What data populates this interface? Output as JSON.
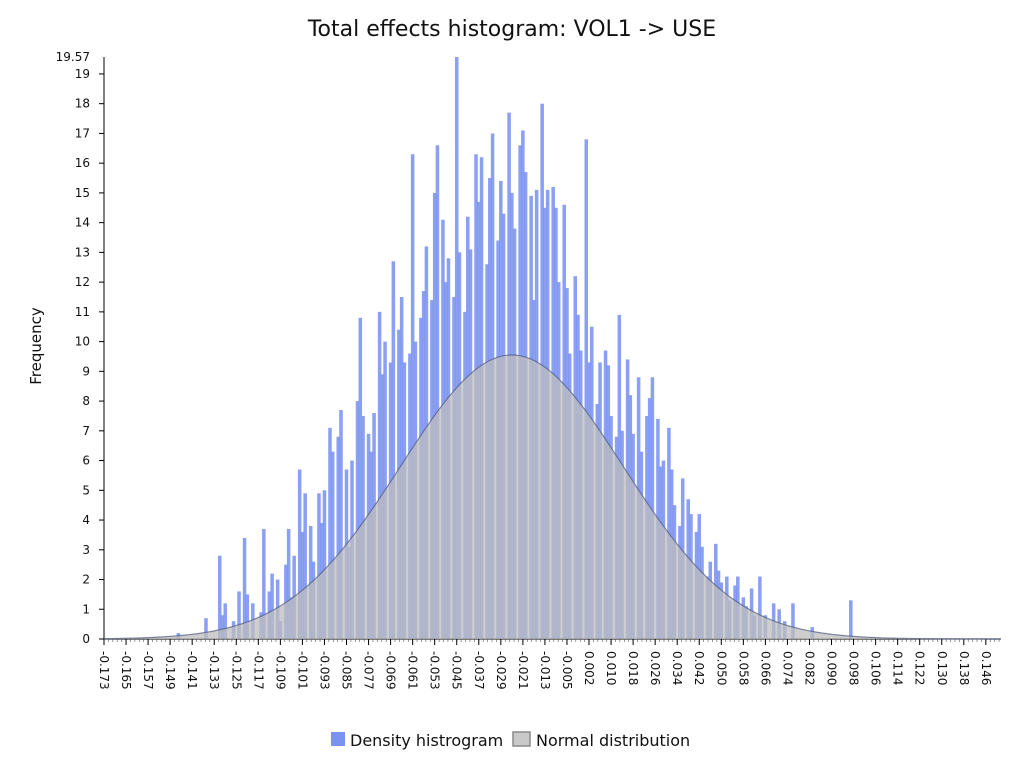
{
  "chart_data": {
    "type": "bar",
    "title": "Total effects histogram: VOL1 -> USE",
    "xlabel": "",
    "ylabel": "Frequency",
    "xlim": [
      -0.173,
      0.1525
    ],
    "ylim": [
      0,
      19.57
    ],
    "y_ticks": [
      0,
      1,
      2,
      3,
      4,
      5,
      6,
      7,
      8,
      9,
      10,
      11,
      12,
      13,
      14,
      15,
      16,
      17,
      18,
      19
    ],
    "y_max_label": "19.57",
    "x_tick_labels": [
      "-0.173",
      "-0.165",
      "-0.157",
      "-0.149",
      "-0.141",
      "-0.133",
      "-0.125",
      "-0.117",
      "-0.109",
      "-0.101",
      "-0.093",
      "-0.085",
      "-0.077",
      "-0.069",
      "-0.061",
      "-0.053",
      "-0.045",
      "-0.037",
      "-0.029",
      "-0.021",
      "-0.013",
      "-0.005",
      "0.002",
      "0.010",
      "0.018",
      "0.026",
      "0.034",
      "0.042",
      "0.050",
      "0.058",
      "0.066",
      "0.074",
      "0.082",
      "0.090",
      "0.098",
      "0.106",
      "0.114",
      "0.122",
      "0.130",
      "0.138",
      "0.146"
    ],
    "legend": {
      "position": "bottom-center"
    },
    "series": [
      {
        "name": "Density histrogram",
        "kind": "histogram",
        "color": "#7b93f0",
        "bins": [
          [
            -0.146,
            0.2
          ],
          [
            -0.136,
            0.7
          ],
          [
            -0.131,
            2.8
          ],
          [
            -0.13,
            0.8
          ],
          [
            -0.129,
            1.2
          ],
          [
            -0.126,
            0.6
          ],
          [
            -0.124,
            1.6
          ],
          [
            -0.122,
            3.4
          ],
          [
            -0.121,
            1.5
          ],
          [
            -0.119,
            1.2
          ],
          [
            -0.116,
            0.9
          ],
          [
            -0.115,
            3.7
          ],
          [
            -0.113,
            1.6
          ],
          [
            -0.112,
            2.2
          ],
          [
            -0.11,
            2.0
          ],
          [
            -0.109,
            0.6
          ],
          [
            -0.107,
            2.5
          ],
          [
            -0.106,
            3.7
          ],
          [
            -0.105,
            1.4
          ],
          [
            -0.104,
            2.8
          ],
          [
            -0.102,
            5.7
          ],
          [
            -0.101,
            3.6
          ],
          [
            -0.1,
            4.9
          ],
          [
            -0.098,
            3.8
          ],
          [
            -0.097,
            2.6
          ],
          [
            -0.095,
            4.9
          ],
          [
            -0.094,
            3.9
          ],
          [
            -0.093,
            5.0
          ],
          [
            -0.091,
            7.1
          ],
          [
            -0.09,
            6.3
          ],
          [
            -0.088,
            6.8
          ],
          [
            -0.087,
            7.7
          ],
          [
            -0.085,
            5.7
          ],
          [
            -0.084,
            3.1
          ],
          [
            -0.083,
            6.0
          ],
          [
            -0.081,
            8.0
          ],
          [
            -0.08,
            10.8
          ],
          [
            -0.079,
            7.5
          ],
          [
            -0.077,
            6.9
          ],
          [
            -0.076,
            6.3
          ],
          [
            -0.075,
            7.6
          ],
          [
            -0.073,
            11.0
          ],
          [
            -0.072,
            8.9
          ],
          [
            -0.071,
            10.0
          ],
          [
            -0.069,
            9.3
          ],
          [
            -0.068,
            12.7
          ],
          [
            -0.066,
            10.4
          ],
          [
            -0.065,
            11.5
          ],
          [
            -0.064,
            9.3
          ],
          [
            -0.062,
            9.6
          ],
          [
            -0.061,
            16.3
          ],
          [
            -0.06,
            10.0
          ],
          [
            -0.058,
            10.8
          ],
          [
            -0.057,
            11.7
          ],
          [
            -0.056,
            13.2
          ],
          [
            -0.054,
            11.4
          ],
          [
            -0.053,
            15.0
          ],
          [
            -0.052,
            16.6
          ],
          [
            -0.05,
            14.1
          ],
          [
            -0.049,
            12.0
          ],
          [
            -0.048,
            12.8
          ],
          [
            -0.046,
            11.5
          ],
          [
            -0.045,
            19.57
          ],
          [
            -0.044,
            13.0
          ],
          [
            -0.042,
            11.0
          ],
          [
            -0.041,
            14.2
          ],
          [
            -0.04,
            13.1
          ],
          [
            -0.038,
            16.3
          ],
          [
            -0.037,
            14.7
          ],
          [
            -0.036,
            16.2
          ],
          [
            -0.034,
            12.6
          ],
          [
            -0.033,
            15.5
          ],
          [
            -0.032,
            17.0
          ],
          [
            -0.03,
            13.4
          ],
          [
            -0.029,
            15.4
          ],
          [
            -0.028,
            14.3
          ],
          [
            -0.026,
            17.7
          ],
          [
            -0.025,
            15.0
          ],
          [
            -0.024,
            13.8
          ],
          [
            -0.022,
            16.6
          ],
          [
            -0.021,
            17.1
          ],
          [
            -0.02,
            15.7
          ],
          [
            -0.018,
            14.9
          ],
          [
            -0.017,
            11.4
          ],
          [
            -0.016,
            15.1
          ],
          [
            -0.014,
            18.0
          ],
          [
            -0.013,
            14.5
          ],
          [
            -0.012,
            15.1
          ],
          [
            -0.01,
            15.2
          ],
          [
            -0.009,
            14.5
          ],
          [
            -0.008,
            12.0
          ],
          [
            -0.006,
            14.6
          ],
          [
            -0.005,
            11.8
          ],
          [
            -0.004,
            9.6
          ],
          [
            -0.002,
            12.2
          ],
          [
            -0.001,
            10.9
          ],
          [
            0.0,
            9.7
          ],
          [
            0.002,
            16.8
          ],
          [
            0.003,
            9.3
          ],
          [
            0.004,
            10.5
          ],
          [
            0.006,
            7.9
          ],
          [
            0.007,
            9.3
          ],
          [
            0.009,
            9.7
          ],
          [
            0.01,
            9.2
          ],
          [
            0.011,
            7.5
          ],
          [
            0.013,
            6.8
          ],
          [
            0.014,
            10.9
          ],
          [
            0.015,
            7.0
          ],
          [
            0.017,
            9.4
          ],
          [
            0.018,
            8.2
          ],
          [
            0.019,
            6.9
          ],
          [
            0.021,
            8.8
          ],
          [
            0.022,
            6.3
          ],
          [
            0.024,
            7.5
          ],
          [
            0.025,
            8.1
          ],
          [
            0.026,
            8.8
          ],
          [
            0.028,
            7.4
          ],
          [
            0.029,
            5.8
          ],
          [
            0.03,
            6.0
          ],
          [
            0.032,
            7.1
          ],
          [
            0.033,
            5.7
          ],
          [
            0.034,
            4.5
          ],
          [
            0.036,
            3.8
          ],
          [
            0.037,
            5.4
          ],
          [
            0.039,
            4.7
          ],
          [
            0.04,
            4.2
          ],
          [
            0.042,
            3.6
          ],
          [
            0.043,
            4.2
          ],
          [
            0.044,
            3.1
          ],
          [
            0.046,
            2.1
          ],
          [
            0.047,
            2.6
          ],
          [
            0.049,
            3.2
          ],
          [
            0.05,
            2.3
          ],
          [
            0.051,
            1.9
          ],
          [
            0.053,
            2.1
          ],
          [
            0.054,
            1.3
          ],
          [
            0.056,
            1.8
          ],
          [
            0.057,
            2.1
          ],
          [
            0.059,
            1.4
          ],
          [
            0.06,
            1.1
          ],
          [
            0.062,
            1.7
          ],
          [
            0.063,
            0.8
          ],
          [
            0.065,
            2.1
          ],
          [
            0.067,
            0.8
          ],
          [
            0.07,
            1.2
          ],
          [
            0.072,
            1.0
          ],
          [
            0.074,
            0.6
          ],
          [
            0.077,
            1.2
          ],
          [
            0.084,
            0.4
          ],
          [
            0.098,
            1.3
          ]
        ]
      },
      {
        "name": "Normal distribution",
        "kind": "normal-curve",
        "color": "#9e9e9e",
        "mean": -0.025,
        "sd": 0.0405,
        "peak": 9.55
      }
    ]
  }
}
